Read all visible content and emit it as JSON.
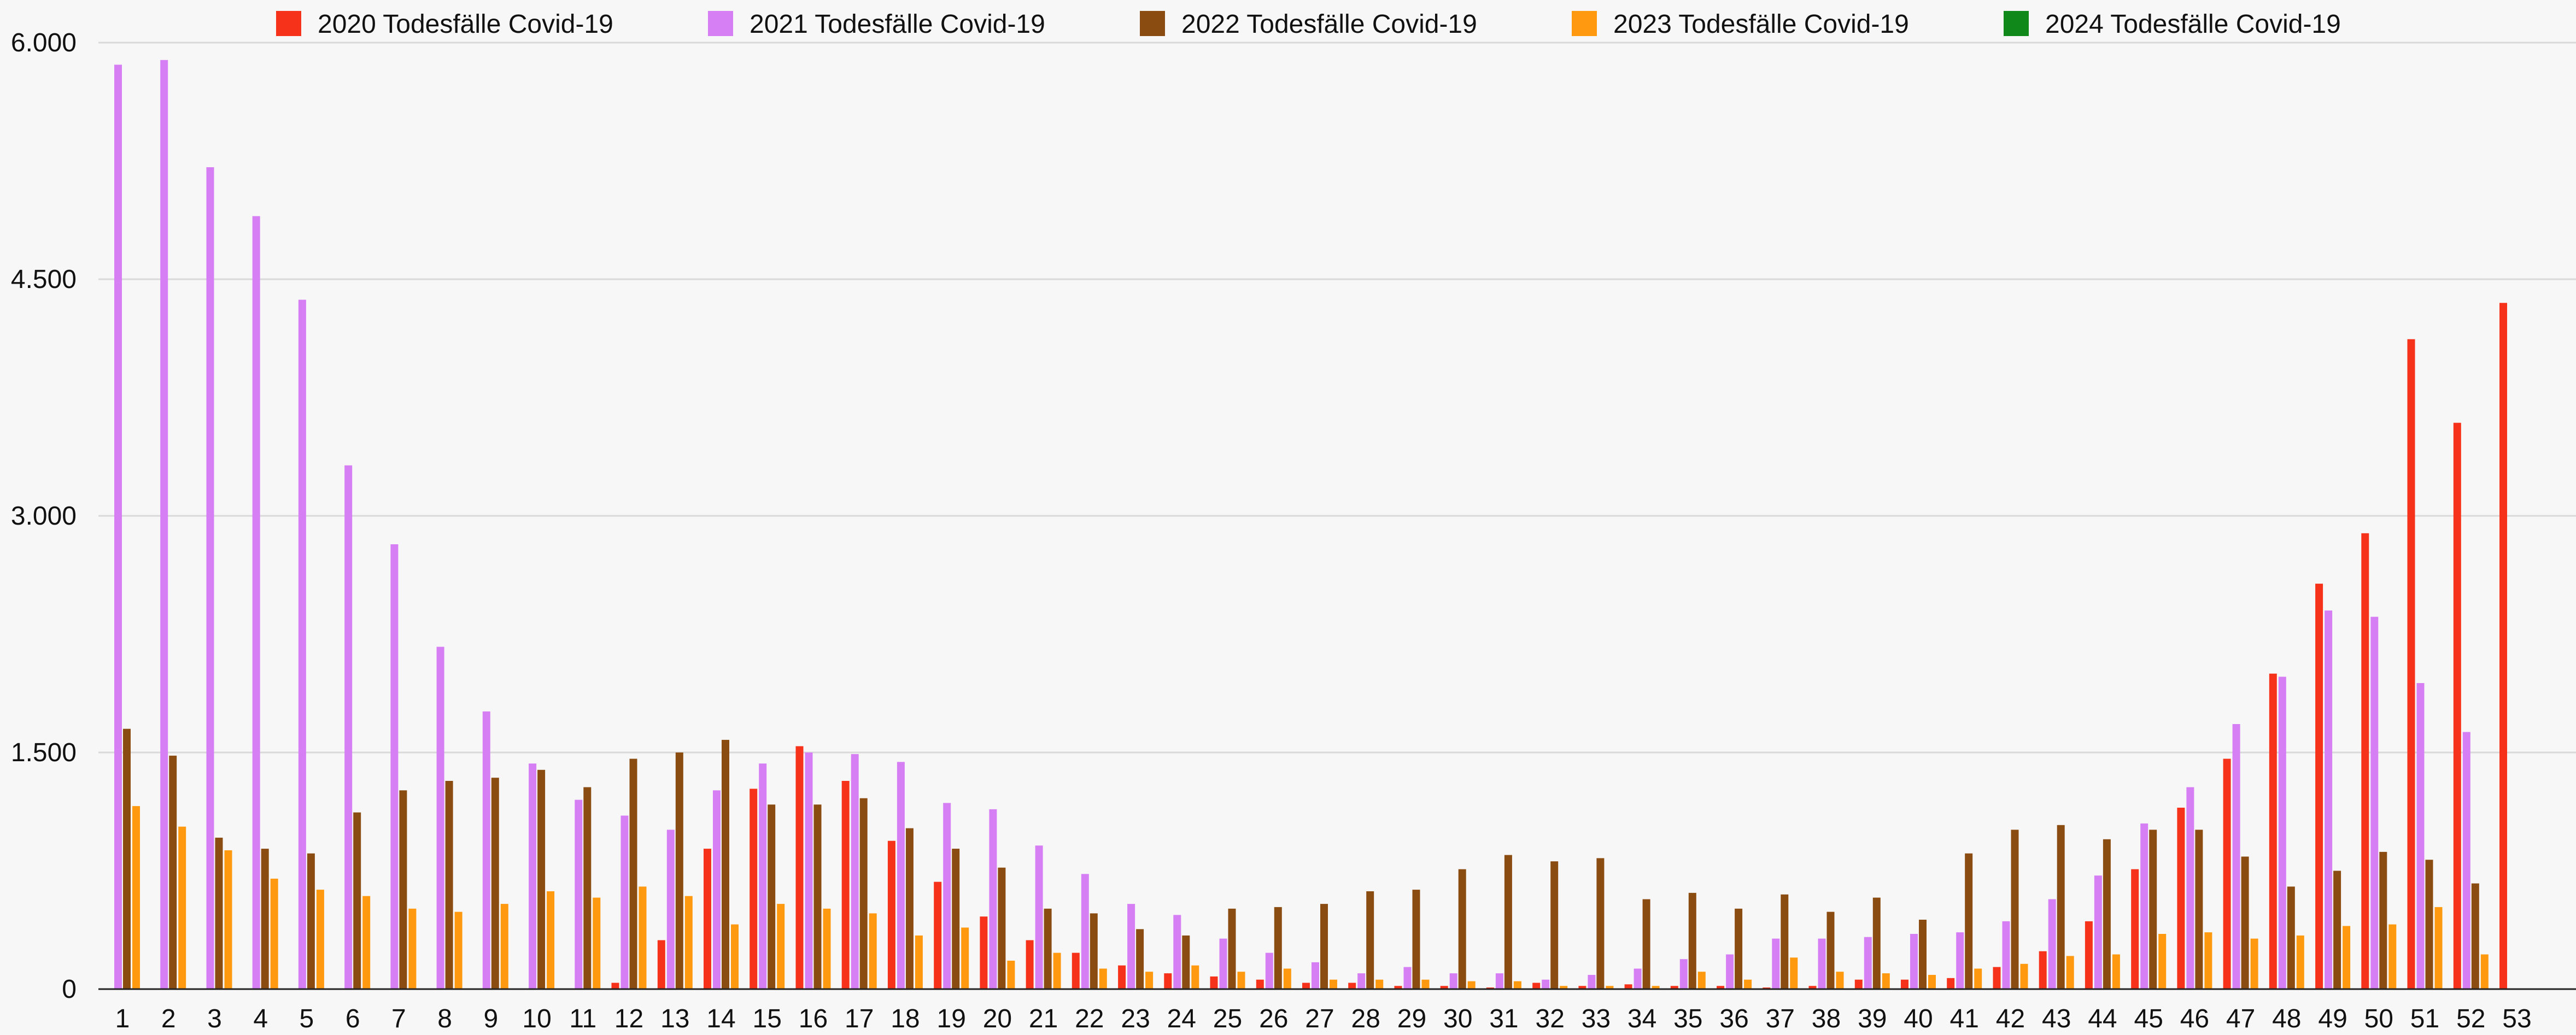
{
  "chart_data": {
    "type": "bar",
    "title": "",
    "xlabel": "",
    "ylabel": "",
    "ylim": [
      0,
      6000
    ],
    "yticks": [
      0,
      1500,
      3000,
      4500,
      6000
    ],
    "ytick_labels": [
      "0",
      "1.500",
      "3.000",
      "4.500",
      "6.000"
    ],
    "grid": true,
    "legend_position": "top",
    "categories": [
      "1",
      "2",
      "3",
      "4",
      "5",
      "6",
      "7",
      "8",
      "9",
      "10",
      "11",
      "12",
      "13",
      "14",
      "15",
      "16",
      "17",
      "18",
      "19",
      "20",
      "21",
      "22",
      "23",
      "24",
      "25",
      "26",
      "27",
      "28",
      "29",
      "30",
      "31",
      "32",
      "33",
      "34",
      "35",
      "36",
      "37",
      "38",
      "39",
      "40",
      "41",
      "42",
      "43",
      "44",
      "45",
      "46",
      "47",
      "48",
      "49",
      "50",
      "51",
      "52",
      "53"
    ],
    "series": [
      {
        "name": "2020 Todesfälle Covid-19",
        "color": "#f6321a",
        "values": [
          null,
          null,
          null,
          null,
          null,
          null,
          null,
          null,
          null,
          null,
          0,
          40,
          310,
          890,
          1270,
          1540,
          1320,
          940,
          680,
          460,
          310,
          230,
          150,
          100,
          80,
          60,
          40,
          40,
          20,
          20,
          10,
          40,
          20,
          30,
          20,
          20,
          10,
          20,
          60,
          60,
          70,
          140,
          240,
          430,
          760,
          1150,
          1460,
          2000,
          2570,
          2890,
          4120,
          3590,
          4350
        ]
      },
      {
        "name": "2021 Todesfälle Covid-19",
        "color": "#d67ff5",
        "values": [
          5860,
          5890,
          5210,
          4900,
          4370,
          3320,
          2820,
          2170,
          1760,
          1430,
          1200,
          1100,
          1010,
          1260,
          1430,
          1500,
          1490,
          1440,
          1180,
          1140,
          910,
          730,
          540,
          470,
          320,
          230,
          170,
          100,
          140,
          100,
          100,
          60,
          90,
          130,
          190,
          220,
          320,
          320,
          330,
          350,
          360,
          430,
          570,
          720,
          1050,
          1280,
          1680,
          1980,
          2400,
          2360,
          1940,
          1630,
          null
        ]
      },
      {
        "name": "2022 Todesfälle Covid-19",
        "color": "#8b4c12",
        "values": [
          1650,
          1480,
          960,
          890,
          860,
          1120,
          1260,
          1320,
          1340,
          1390,
          1280,
          1460,
          1500,
          1580,
          1170,
          1170,
          1210,
          1020,
          890,
          770,
          510,
          480,
          380,
          340,
          510,
          520,
          540,
          620,
          630,
          760,
          850,
          810,
          830,
          570,
          610,
          510,
          600,
          490,
          580,
          440,
          860,
          1010,
          1040,
          950,
          1010,
          1010,
          840,
          650,
          750,
          870,
          820,
          670,
          null
        ]
      },
      {
        "name": "2023 Todesfälle Covid-19",
        "color": "#ff9910",
        "values": [
          1160,
          1030,
          880,
          700,
          630,
          590,
          510,
          490,
          540,
          620,
          580,
          650,
          590,
          410,
          540,
          510,
          480,
          340,
          390,
          180,
          230,
          130,
          110,
          150,
          110,
          130,
          60,
          60,
          60,
          50,
          50,
          20,
          20,
          20,
          110,
          60,
          200,
          110,
          100,
          90,
          130,
          160,
          210,
          220,
          350,
          360,
          320,
          340,
          400,
          410,
          520,
          220,
          null
        ]
      },
      {
        "name": "2024 Todesfälle Covid-19",
        "color": "#11881a",
        "values": [
          null,
          null,
          null,
          null,
          null,
          null,
          null,
          null,
          null,
          null,
          null,
          null,
          null,
          null,
          null,
          null,
          null,
          null,
          null,
          null,
          null,
          null,
          null,
          null,
          null,
          null,
          null,
          null,
          null,
          null,
          null,
          null,
          null,
          null,
          null,
          null,
          null,
          null,
          null,
          null,
          null,
          null,
          null,
          null,
          null,
          null,
          null,
          null,
          null,
          null,
          null,
          null,
          null
        ]
      }
    ]
  }
}
